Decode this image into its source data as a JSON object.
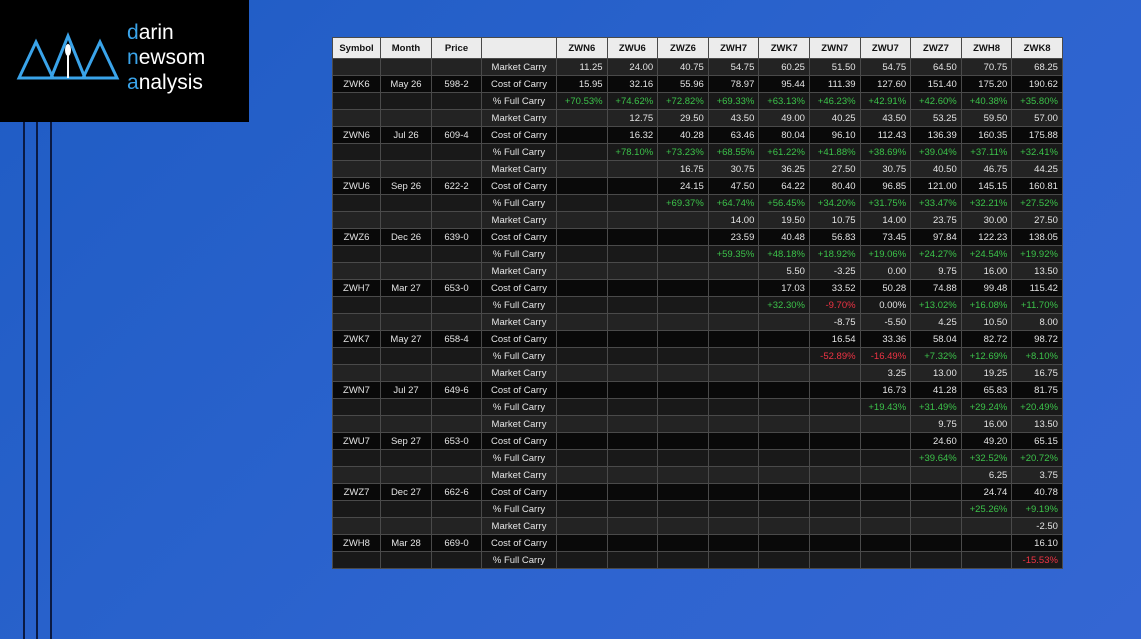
{
  "logo": {
    "lines": [
      "darin",
      "newsom",
      "analysis"
    ]
  },
  "table": {
    "header": {
      "symbol": "Symbol",
      "month": "Month",
      "price": "Price",
      "contracts": [
        "ZWN6",
        "ZWU6",
        "ZWZ6",
        "ZWH7",
        "ZWK7",
        "ZWN7",
        "ZWU7",
        "ZWZ7",
        "ZWH8",
        "ZWK8"
      ]
    },
    "row_labels": [
      "Market Carry",
      "Cost of Carry",
      "% Full Carry"
    ],
    "groups": [
      {
        "symbol": "ZWK6",
        "month": "May 26",
        "price": "598-2",
        "market_carry": [
          "11.25",
          "24.00",
          "40.75",
          "54.75",
          "60.25",
          "51.50",
          "54.75",
          "64.50",
          "70.75",
          "68.25"
        ],
        "cost_of_carry": [
          "15.95",
          "32.16",
          "55.96",
          "78.97",
          "95.44",
          "111.39",
          "127.60",
          "151.40",
          "175.20",
          "190.62"
        ],
        "full_carry": [
          "+70.53%",
          "+74.62%",
          "+72.82%",
          "+69.33%",
          "+63.13%",
          "+46.23%",
          "+42.91%",
          "+42.60%",
          "+40.38%",
          "+35.80%"
        ]
      },
      {
        "symbol": "ZWN6",
        "month": "Jul 26",
        "price": "609-4",
        "market_carry": [
          "12.75",
          "29.50",
          "43.50",
          "49.00",
          "40.25",
          "43.50",
          "53.25",
          "59.50",
          "57.00"
        ],
        "cost_of_carry": [
          "16.32",
          "40.28",
          "63.46",
          "80.04",
          "96.10",
          "112.43",
          "136.39",
          "160.35",
          "175.88"
        ],
        "full_carry": [
          "+78.10%",
          "+73.23%",
          "+68.55%",
          "+61.22%",
          "+41.88%",
          "+38.69%",
          "+39.04%",
          "+37.11%",
          "+32.41%"
        ]
      },
      {
        "symbol": "ZWU6",
        "month": "Sep 26",
        "price": "622-2",
        "market_carry": [
          "16.75",
          "30.75",
          "36.25",
          "27.50",
          "30.75",
          "40.50",
          "46.75",
          "44.25"
        ],
        "cost_of_carry": [
          "24.15",
          "47.50",
          "64.22",
          "80.40",
          "96.85",
          "121.00",
          "145.15",
          "160.81"
        ],
        "full_carry": [
          "+69.37%",
          "+64.74%",
          "+56.45%",
          "+34.20%",
          "+31.75%",
          "+33.47%",
          "+32.21%",
          "+27.52%"
        ]
      },
      {
        "symbol": "ZWZ6",
        "month": "Dec 26",
        "price": "639-0",
        "market_carry": [
          "14.00",
          "19.50",
          "10.75",
          "14.00",
          "23.75",
          "30.00",
          "27.50"
        ],
        "cost_of_carry": [
          "23.59",
          "40.48",
          "56.83",
          "73.45",
          "97.84",
          "122.23",
          "138.05"
        ],
        "full_carry": [
          "+59.35%",
          "+48.18%",
          "+18.92%",
          "+19.06%",
          "+24.27%",
          "+24.54%",
          "+19.92%"
        ]
      },
      {
        "symbol": "ZWH7",
        "month": "Mar 27",
        "price": "653-0",
        "market_carry": [
          "5.50",
          "-3.25",
          "0.00",
          "9.75",
          "16.00",
          "13.50"
        ],
        "cost_of_carry": [
          "17.03",
          "33.52",
          "50.28",
          "74.88",
          "99.48",
          "115.42"
        ],
        "full_carry": [
          "+32.30%",
          "-9.70%",
          "0.00%",
          "+13.02%",
          "+16.08%",
          "+11.70%"
        ]
      },
      {
        "symbol": "ZWK7",
        "month": "May 27",
        "price": "658-4",
        "market_carry": [
          "-8.75",
          "-5.50",
          "4.25",
          "10.50",
          "8.00"
        ],
        "cost_of_carry": [
          "16.54",
          "33.36",
          "58.04",
          "82.72",
          "98.72"
        ],
        "full_carry": [
          "-52.89%",
          "-16.49%",
          "+7.32%",
          "+12.69%",
          "+8.10%"
        ]
      },
      {
        "symbol": "ZWN7",
        "month": "Jul 27",
        "price": "649-6",
        "market_carry": [
          "3.25",
          "13.00",
          "19.25",
          "16.75"
        ],
        "cost_of_carry": [
          "16.73",
          "41.28",
          "65.83",
          "81.75"
        ],
        "full_carry": [
          "+19.43%",
          "+31.49%",
          "+29.24%",
          "+20.49%"
        ]
      },
      {
        "symbol": "ZWU7",
        "month": "Sep 27",
        "price": "653-0",
        "market_carry": [
          "9.75",
          "16.00",
          "13.50"
        ],
        "cost_of_carry": [
          "24.60",
          "49.20",
          "65.15"
        ],
        "full_carry": [
          "+39.64%",
          "+32.52%",
          "+20.72%"
        ]
      },
      {
        "symbol": "ZWZ7",
        "month": "Dec 27",
        "price": "662-6",
        "market_carry": [
          "6.25",
          "3.75"
        ],
        "cost_of_carry": [
          "24.74",
          "40.78"
        ],
        "full_carry": [
          "+25.26%",
          "+9.19%"
        ]
      },
      {
        "symbol": "ZWH8",
        "month": "Mar 28",
        "price": "669-0",
        "market_carry": [
          "-2.50"
        ],
        "cost_of_carry": [
          "16.10"
        ],
        "full_carry": [
          "-15.53%"
        ]
      }
    ]
  }
}
